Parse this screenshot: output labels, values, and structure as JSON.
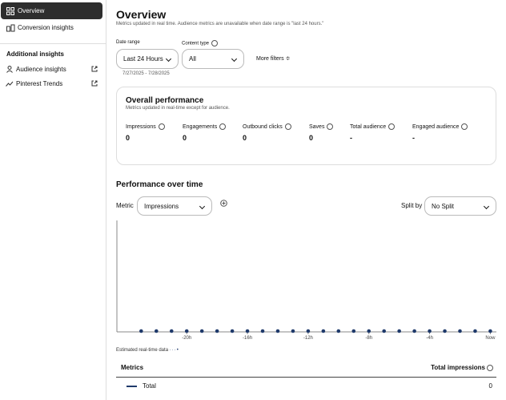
{
  "sidebar": {
    "items": [
      "Overview",
      "Conversion insights"
    ],
    "section_title": "Additional insights",
    "links": [
      "Audience insights",
      "Pinterest Trends"
    ]
  },
  "header": {
    "title": "Overview",
    "subtitle": "Metrics updated in real time. Audience metrics are unavailable when date range is \"last 24 hours.\""
  },
  "filters": {
    "date_range_label": "Date range",
    "date_range_value": "Last 24 Hours",
    "date_range_dates": "7/27/2025 - 7/28/2025",
    "content_type_label": "Content type",
    "content_type_value": "All",
    "more_filters": "More filters"
  },
  "overall": {
    "title": "Overall performance",
    "subtitle": "Metrics updated in real-time except for audience.",
    "metrics": [
      {
        "label": "Impressions",
        "value": "0"
      },
      {
        "label": "Engagements",
        "value": "0"
      },
      {
        "label": "Outbound clicks",
        "value": "0"
      },
      {
        "label": "Saves",
        "value": "0"
      },
      {
        "label": "Total audience",
        "value": "-"
      },
      {
        "label": "Engaged audience",
        "value": "-"
      }
    ]
  },
  "performance": {
    "title": "Performance over time",
    "metric_label": "Metric",
    "metric_value": "Impressions",
    "split_label": "Split by",
    "split_value": "No Split",
    "legend": "Estimated real-time data"
  },
  "chart_data": {
    "type": "line",
    "x": [
      -23,
      -22,
      -21,
      -20,
      -19,
      -18,
      -17,
      -16,
      -15,
      -14,
      -13,
      -12,
      -11,
      -10,
      -9,
      -8,
      -7,
      -6,
      -5,
      -4,
      -3,
      -2,
      -1,
      0
    ],
    "series": [
      {
        "name": "Total",
        "color": "#1f3a6b",
        "values": [
          0,
          0,
          0,
          0,
          0,
          0,
          0,
          0,
          0,
          0,
          0,
          0,
          0,
          0,
          0,
          0,
          0,
          0,
          0,
          0,
          0,
          0,
          0,
          0
        ]
      }
    ],
    "xlim": [
      -24.6,
      0.4
    ],
    "ylim": [
      0,
      1
    ],
    "xticks": [
      {
        "value": -20,
        "label": "-20h"
      },
      {
        "value": -16,
        "label": "-16h"
      },
      {
        "value": -12,
        "label": "-12h"
      },
      {
        "value": -8,
        "label": "-8h"
      },
      {
        "value": -4,
        "label": "-4h"
      },
      {
        "value": 0,
        "label": "Now"
      }
    ]
  },
  "table": {
    "headers": [
      "Metrics",
      "Total impressions"
    ],
    "rows": [
      [
        "Total",
        "0"
      ]
    ]
  }
}
